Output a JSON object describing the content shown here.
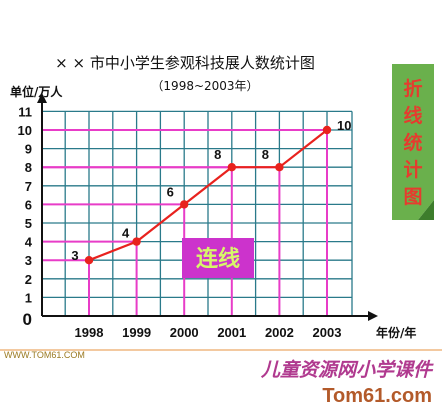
{
  "chart_data": {
    "type": "line",
    "title": "× × 市中小学生参观科技展人数统计图",
    "subtitle": "（1998~2003年）",
    "ylabel": "单位/万人",
    "xlabel": "年份/年",
    "categories": [
      "1998",
      "1999",
      "2000",
      "2001",
      "2002",
      "2003"
    ],
    "values": [
      3,
      4,
      6,
      8,
      8,
      10
    ],
    "data_labels": [
      "3",
      "4",
      "6",
      "8",
      "8",
      "10"
    ],
    "ylim": [
      0,
      11
    ],
    "yticks": [
      "0",
      "1",
      "2",
      "3",
      "4",
      "5",
      "6",
      "7",
      "8",
      "9",
      "10",
      "11"
    ],
    "grid": true,
    "line_color": "#e8221e",
    "grid_color": "#2a7a8a",
    "highlight_color": "#e83cc8"
  },
  "tag": {
    "label": "连线",
    "bg": "#cc33cc"
  },
  "side_panel": {
    "chars": [
      "折",
      "线",
      "统",
      "计",
      "图"
    ],
    "bg": "#6ab04c"
  },
  "footer": {
    "brand_cn": "儿童资源网小学课件",
    "brand_url": "Tom61.com",
    "dotted_text": "WWW.TOM61.COM"
  }
}
